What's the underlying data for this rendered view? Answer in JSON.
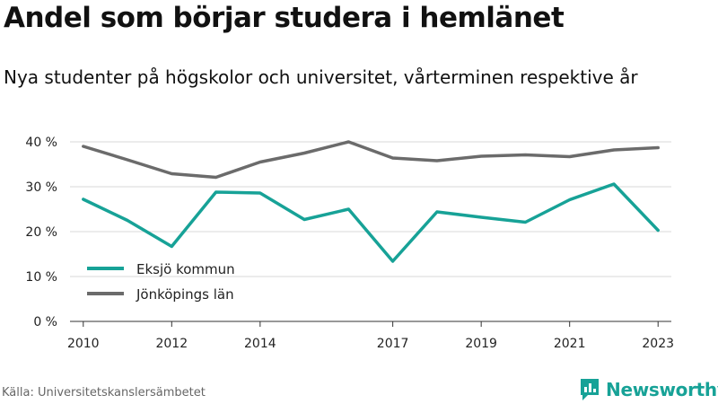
{
  "title": "Andel som börjar studera i hemlänet",
  "subtitle": "Nya studenter på högskolor och universitet, vårterminen respektive år",
  "source": "Källa: Universitetskanslersämbetet",
  "brand": {
    "name": "Newsworthy",
    "icon": "newsworthy-logo-icon",
    "color": "#17a297"
  },
  "chart_data": {
    "type": "line",
    "title": "",
    "xlabel": "",
    "ylabel": "",
    "x": [
      2010,
      2011,
      2012,
      2013,
      2014,
      2015,
      2016,
      2017,
      2018,
      2019,
      2020,
      2021,
      2022,
      2023
    ],
    "x_tick_labels": [
      "2010",
      "2012",
      "2014",
      "2017",
      "2019",
      "2021",
      "2023"
    ],
    "x_tick_values": [
      2010,
      2012,
      2014,
      2017,
      2019,
      2021,
      2023
    ],
    "ylim": [
      0,
      40
    ],
    "y_ticks": [
      0,
      10,
      20,
      30,
      40
    ],
    "y_tick_labels": [
      "0 %",
      "10 %",
      "20 %",
      "30 %",
      "40 %"
    ],
    "grid": true,
    "legend_position": "bottom-left",
    "series": [
      {
        "name": "Eksjö kommun",
        "color": "#17a297",
        "values": [
          27.2,
          22.5,
          16.7,
          28.8,
          28.6,
          22.7,
          25.0,
          13.4,
          24.4,
          23.2,
          22.1,
          27.1,
          30.6,
          20.3
        ]
      },
      {
        "name": "Jönköpings län",
        "color": "#6b6b6b",
        "values": [
          39.0,
          36.0,
          32.9,
          32.1,
          35.5,
          37.5,
          40.0,
          36.4,
          35.8,
          36.8,
          37.1,
          36.7,
          38.2,
          38.7
        ]
      }
    ]
  }
}
